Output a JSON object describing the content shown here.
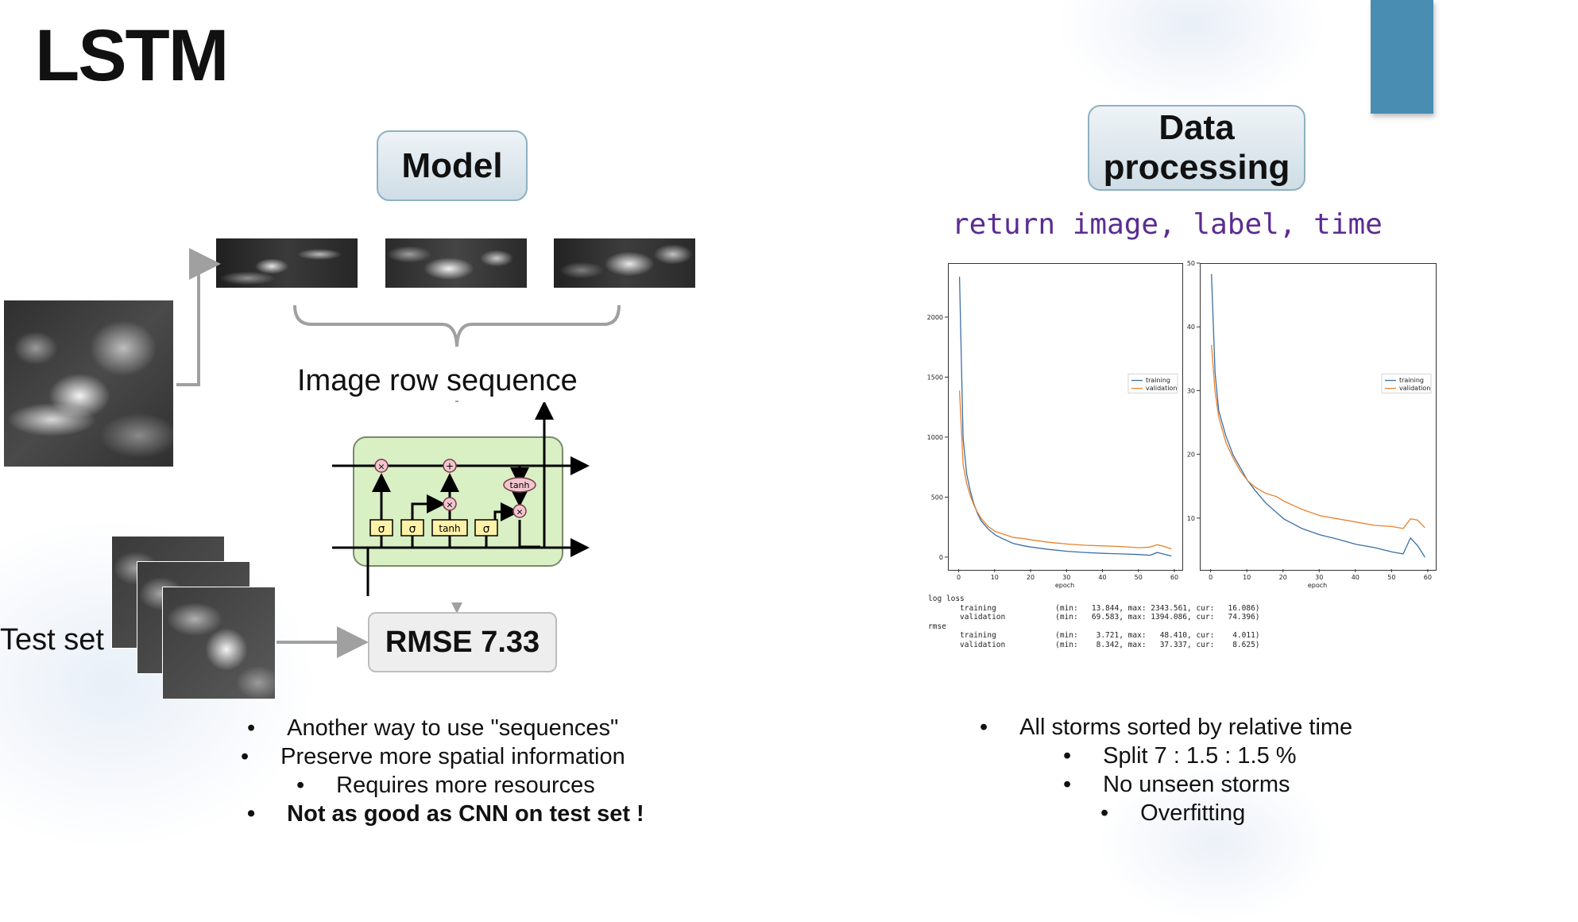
{
  "slide": {
    "title": "LSTM",
    "model_label": "Model",
    "data_label_line1": "Data",
    "data_label_line2": "processing",
    "image_row_label": "Image row sequence",
    "test_set_label": "Test set",
    "rmse_label": "RMSE 7.33",
    "code_line": "return image, label, time"
  },
  "lstm_cell": {
    "gate1": "σ",
    "gate2": "σ",
    "gate3": "tanh",
    "gate4": "σ",
    "mul1": "×",
    "add": "+",
    "mul2": "×",
    "mul3": "×",
    "tanh_out": "tanh"
  },
  "left_bullets": [
    "Another way to use \"sequences\"",
    "Preserve more spatial information",
    "Requires more resources",
    "Not as good as CNN on test set !"
  ],
  "right_bullets": [
    "All storms sorted by relative time",
    "Split 7 : 1.5 : 1.5 %",
    "No unseen storms",
    "Overfitting"
  ],
  "colors": {
    "accent": "#4a8db3",
    "code": "#5a2d91",
    "training": "#3b6ea5",
    "validation": "#e8822e",
    "cell_fill": "#d9efc4"
  },
  "chart_data": [
    {
      "type": "line",
      "xlabel": "epoch",
      "xlim": [
        -3,
        62
      ],
      "ylim": [
        -100,
        2450
      ],
      "xticks": [
        0,
        10,
        20,
        30,
        40,
        50,
        60
      ],
      "yticks": [
        0,
        500,
        1000,
        1500,
        2000
      ],
      "legend": "right",
      "series": [
        {
          "name": "training",
          "x": [
            0,
            1,
            2,
            3,
            4,
            5,
            6,
            8,
            10,
            12,
            15,
            18,
            20,
            25,
            30,
            35,
            40,
            45,
            50,
            53,
            55,
            57,
            59
          ],
          "y": [
            2343,
            1000,
            700,
            560,
            450,
            370,
            310,
            240,
            190,
            160,
            120,
            100,
            90,
            70,
            55,
            45,
            38,
            33,
            28,
            22,
            45,
            30,
            16
          ]
        },
        {
          "name": "validation",
          "x": [
            0,
            1,
            2,
            3,
            4,
            5,
            6,
            8,
            10,
            12,
            15,
            18,
            20,
            25,
            30,
            35,
            40,
            45,
            50,
            53,
            55,
            57,
            59
          ],
          "y": [
            1394,
            780,
            620,
            520,
            440,
            380,
            330,
            260,
            220,
            200,
            170,
            160,
            150,
            130,
            115,
            105,
            100,
            95,
            85,
            90,
            110,
            95,
            74
          ]
        }
      ]
    },
    {
      "type": "line",
      "xlabel": "epoch",
      "xlim": [
        -3,
        62
      ],
      "ylim": [
        2,
        50
      ],
      "xticks": [
        0,
        10,
        20,
        30,
        40,
        50,
        60
      ],
      "yticks": [
        10,
        20,
        30,
        40,
        50
      ],
      "legend": "right",
      "series": [
        {
          "name": "training",
          "x": [
            0,
            1,
            2,
            3,
            4,
            6,
            8,
            10,
            12,
            15,
            18,
            20,
            25,
            30,
            35,
            40,
            45,
            50,
            53,
            55,
            57,
            59
          ],
          "y": [
            48.4,
            33,
            27,
            25,
            23,
            20,
            18,
            16,
            14.5,
            12.5,
            11,
            10,
            8.5,
            7.5,
            6.8,
            6,
            5.5,
            4.8,
            4.5,
            7,
            5.8,
            4.0
          ]
        },
        {
          "name": "validation",
          "x": [
            0,
            1,
            2,
            3,
            4,
            6,
            8,
            10,
            12,
            15,
            18,
            20,
            25,
            30,
            35,
            40,
            45,
            50,
            53,
            55,
            57,
            59
          ],
          "y": [
            37.3,
            30,
            26,
            24,
            22,
            19.5,
            17.5,
            16,
            15,
            14,
            13.5,
            12.8,
            11.5,
            10.5,
            10,
            9.5,
            9,
            8.8,
            8.5,
            10,
            9.8,
            8.6
          ]
        }
      ]
    }
  ],
  "log": {
    "header1": "log loss",
    "row1": "       training             (min:   13.844, max: 2343.561, cur:   16.086)",
    "row2": "       validation           (min:   69.583, max: 1394.086, cur:   74.396)",
    "header2": "rmse",
    "row3": "       training             (min:    3.721, max:   48.410, cur:    4.011)",
    "row4": "       validation           (min:    8.342, max:   37.337, cur:    8.625)"
  }
}
